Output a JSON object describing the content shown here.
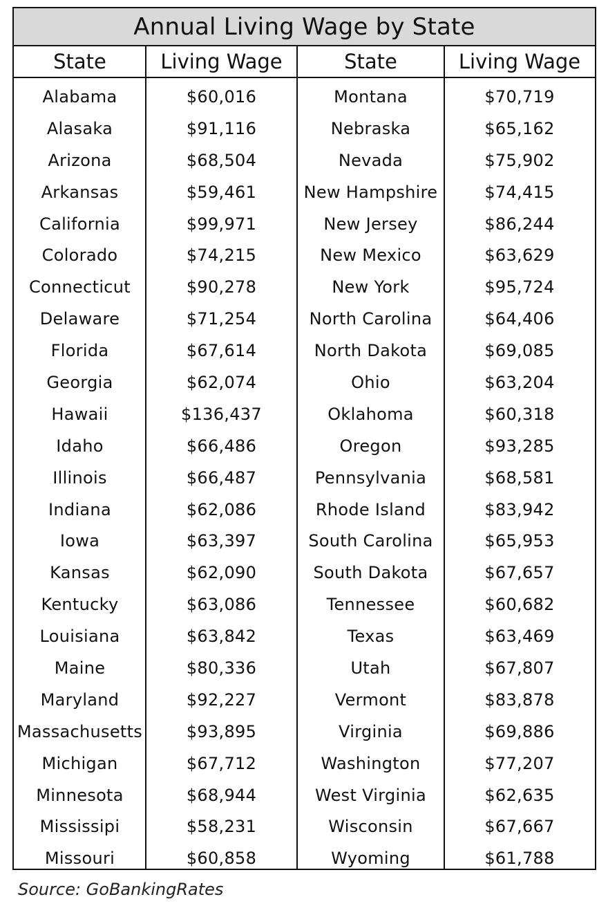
{
  "chart_data": {
    "type": "table",
    "title": "Annual Living Wage by State",
    "columns": [
      "State",
      "Living Wage",
      "State",
      "Living Wage"
    ],
    "rows": [
      [
        "Alabama",
        "$60,016",
        "Montana",
        "$70,719"
      ],
      [
        "Alasaka",
        "$91,116",
        "Nebraska",
        "$65,162"
      ],
      [
        "Arizona",
        "$68,504",
        "Nevada",
        "$75,902"
      ],
      [
        "Arkansas",
        "$59,461",
        "New Hampshire",
        "$74,415"
      ],
      [
        "California",
        "$99,971",
        "New Jersey",
        "$86,244"
      ],
      [
        "Colorado",
        "$74,215",
        "New Mexico",
        "$63,629"
      ],
      [
        "Connecticut",
        "$90,278",
        "New York",
        "$95,724"
      ],
      [
        "Delaware",
        "$71,254",
        "North Carolina",
        "$64,406"
      ],
      [
        "Florida",
        "$67,614",
        "North Dakota",
        "$69,085"
      ],
      [
        "Georgia",
        "$62,074",
        "Ohio",
        "$63,204"
      ],
      [
        "Hawaii",
        "$136,437",
        "Oklahoma",
        "$60,318"
      ],
      [
        "Idaho",
        "$66,486",
        "Oregon",
        "$93,285"
      ],
      [
        "Illinois",
        "$66,487",
        "Pennsylvania",
        "$68,581"
      ],
      [
        "Indiana",
        "$62,086",
        "Rhode Island",
        "$83,942"
      ],
      [
        "Iowa",
        "$63,397",
        "South Carolina",
        "$65,953"
      ],
      [
        "Kansas",
        "$62,090",
        "South Dakota",
        "$67,657"
      ],
      [
        "Kentucky",
        "$63,086",
        "Tennessee",
        "$60,682"
      ],
      [
        "Louisiana",
        "$63,842",
        "Texas",
        "$63,469"
      ],
      [
        "Maine",
        "$80,336",
        "Utah",
        "$67,807"
      ],
      [
        "Maryland",
        "$92,227",
        "Vermont",
        "$83,878"
      ],
      [
        "Massachusetts",
        "$93,895",
        "Virginia",
        "$69,886"
      ],
      [
        "Michigan",
        "$67,712",
        "Washington",
        "$77,207"
      ],
      [
        "Minnesota",
        "$68,944",
        "West Virginia",
        "$62,635"
      ],
      [
        "Mississipi",
        "$58,231",
        "Wisconsin",
        "$67,667"
      ],
      [
        "Missouri",
        "$60,858",
        "Wyoming",
        "$61,788"
      ]
    ],
    "source": "Source: GoBankingRates"
  },
  "colors": {
    "title_background": "#d9d9d9",
    "border": "#111111",
    "text": "#111111"
  }
}
